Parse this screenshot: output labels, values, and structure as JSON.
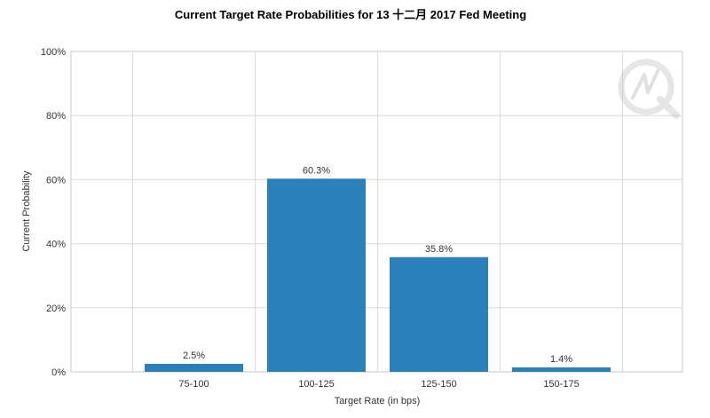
{
  "chart_data": {
    "type": "bar",
    "title": "Current Target Rate Probabilities for 13 十二月 2017  Fed Meeting",
    "xlabel": "Target Rate (in bps)",
    "ylabel": "Current Probability",
    "categories": [
      "75-100",
      "100-125",
      "125-150",
      "150-175"
    ],
    "values": [
      2.5,
      60.3,
      35.8,
      1.4
    ],
    "data_labels": [
      "2.5%",
      "60.3%",
      "35.8%",
      "1.4%"
    ],
    "ylim": [
      0,
      100
    ],
    "y_ticks": [
      "0%",
      "20%",
      "40%",
      "60%",
      "80%",
      "100%"
    ],
    "grid": true,
    "legend": "none",
    "bar_color": "#2b80b9"
  }
}
